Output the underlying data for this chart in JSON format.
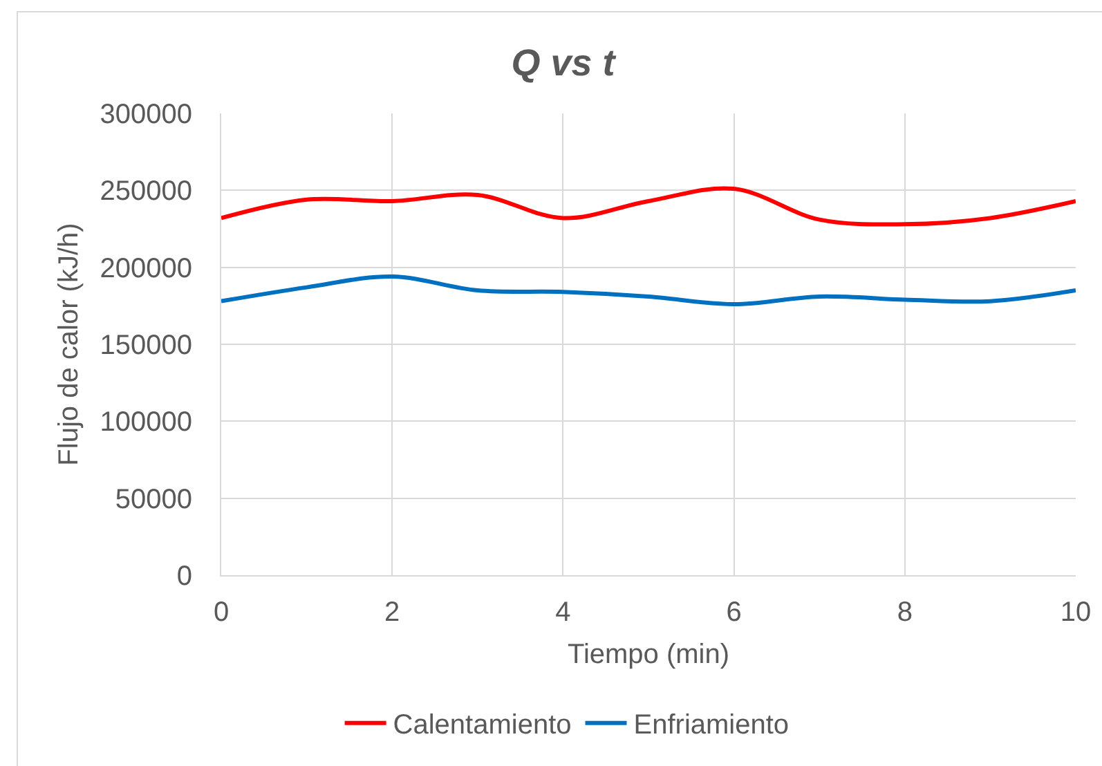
{
  "chart_data": {
    "type": "line",
    "title": "Q vs t",
    "xlabel": "Tiempo (min)",
    "ylabel": "Flujo de calor (kJ/h)",
    "x": [
      0,
      1,
      2,
      3,
      4,
      5,
      6,
      7,
      8,
      9,
      10
    ],
    "series": [
      {
        "name": "Calentamiento",
        "color": "#ff0000",
        "values": [
          232000,
          244000,
          243000,
          247000,
          232000,
          243000,
          251000,
          231000,
          228000,
          232000,
          243000
        ]
      },
      {
        "name": "Enfriamiento",
        "color": "#0070c0",
        "values": [
          178000,
          187000,
          194000,
          185000,
          184000,
          181000,
          176000,
          181000,
          179000,
          178000,
          185000
        ]
      }
    ],
    "xlim": [
      0,
      10
    ],
    "xticks": [
      0,
      2,
      4,
      6,
      8,
      10
    ],
    "ylim": [
      0,
      300000
    ],
    "yticks": [
      0,
      50000,
      100000,
      150000,
      200000,
      250000,
      300000
    ],
    "grid": true,
    "legend": "bottom",
    "line_style": "solid"
  }
}
